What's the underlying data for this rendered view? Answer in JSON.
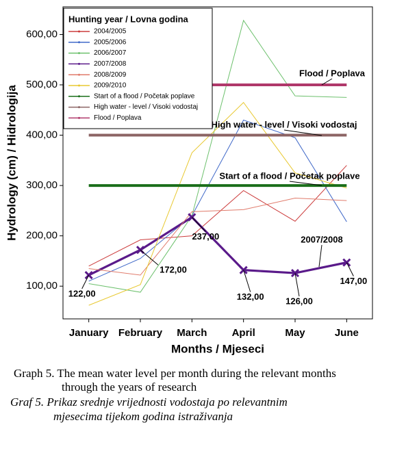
{
  "chart_data": {
    "type": "line",
    "legend_title": "Hunting year / Lovna godina",
    "y_label": "Hydrology (cm) / Hidrologija",
    "x_label": "Months / Mjeseci",
    "categories": [
      "January",
      "February",
      "March",
      "April",
      "May",
      "June"
    ],
    "ylim": [
      35,
      655
    ],
    "yticks": [
      {
        "value": 100,
        "label": "100,00"
      },
      {
        "value": 200,
        "label": "200,00"
      },
      {
        "value": 300,
        "label": "300,00"
      },
      {
        "value": 400,
        "label": "400,00"
      },
      {
        "value": 500,
        "label": "500,00"
      },
      {
        "value": 600,
        "label": "600,00"
      }
    ],
    "series": [
      {
        "name": "2004/2005",
        "color": "#cc3b3b",
        "values": [
          140,
          192,
          200,
          290,
          229,
          340
        ]
      },
      {
        "name": "2005/2006",
        "color": "#3f68c8",
        "values": [
          110,
          155,
          240,
          430,
          395,
          228
        ]
      },
      {
        "name": "2006/2007",
        "color": "#6cc06c",
        "values": [
          105,
          88,
          240,
          628,
          478,
          475
        ]
      },
      {
        "name": "2007/2008",
        "color": "#5a1a8a",
        "values": [
          122,
          172,
          237,
          132,
          126,
          147
        ],
        "value_labels": [
          "122,00",
          "172,00",
          "237,00",
          "132,00",
          "126,00",
          "147,00"
        ]
      },
      {
        "name": "2008/2009",
        "color": "#e07a6a",
        "values": [
          135,
          122,
          248,
          252,
          275,
          270
        ]
      },
      {
        "name": "2009/2010",
        "color": "#e8c830",
        "values": [
          62,
          103,
          365,
          465,
          325,
          295
        ]
      },
      {
        "name": "Start of a flood / Početak poplave",
        "color": "#1a6e1a",
        "values": [
          300,
          300,
          300,
          300,
          300,
          300
        ]
      },
      {
        "name": "High water - level / Visoki vodostaj",
        "color": "#8c6464",
        "values": [
          400,
          400,
          400,
          400,
          400,
          400
        ]
      },
      {
        "name": "Flood / Poplava",
        "color": "#b0386a",
        "values": [
          500,
          500,
          500,
          500,
          500,
          500
        ]
      }
    ]
  },
  "caption": {
    "english": [
      "Graph 5. The mean water level per month during the relevant months",
      "through the years of research"
    ],
    "croatian": [
      "Graf 5. Prikaz srednje vrijednosti vodostaja po relevantnim",
      "mjesecima tijekom godina istraživanja"
    ]
  }
}
